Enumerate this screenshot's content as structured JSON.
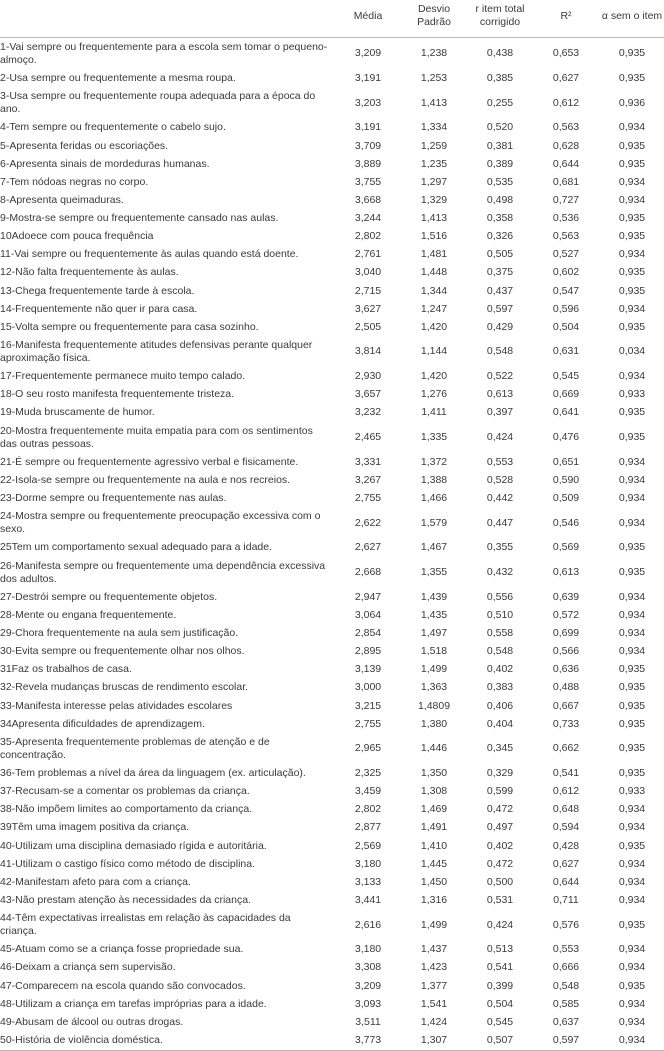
{
  "headers": {
    "label": "",
    "media": "Média",
    "sd": "Desvio Padrão",
    "ritem": "r item total corrigido",
    "r2": "R²",
    "alpha": "α sem o item"
  },
  "rows": [
    {
      "label": "1-Vai sempre ou frequentemente para a escola sem tomar o pequeno-almoço.",
      "media": "3,209",
      "sd": "1,238",
      "ritem": "0,438",
      "r2": "0,653",
      "alpha": "0,935"
    },
    {
      "label": "2-Usa sempre ou frequentemente a mesma roupa.",
      "media": "3,191",
      "sd": "1,253",
      "ritem": "0,385",
      "r2": "0,627",
      "alpha": "0,935"
    },
    {
      "label": "3-Usa sempre ou frequentemente roupa adequada para a época do ano.",
      "media": "3,203",
      "sd": "1,413",
      "ritem": "0,255",
      "r2": "0,612",
      "alpha": "0,936"
    },
    {
      "label": "4-Tem sempre ou frequentemente o cabelo sujo.",
      "media": "3,191",
      "sd": "1,334",
      "ritem": "0,520",
      "r2": "0,563",
      "alpha": "0,934"
    },
    {
      "label": "5-Apresenta feridas ou escoriações.",
      "media": "3,709",
      "sd": "1,259",
      "ritem": "0,381",
      "r2": "0,628",
      "alpha": "0,935"
    },
    {
      "label": "6-Apresenta sinais de mordeduras humanas.",
      "media": "3,889",
      "sd": "1,235",
      "ritem": "0,389",
      "r2": "0,644",
      "alpha": "0,935"
    },
    {
      "label": "7-Tem nódoas negras no corpo.",
      "media": "3,755",
      "sd": "1,297",
      "ritem": "0,535",
      "r2": "0,681",
      "alpha": "0,934"
    },
    {
      "label": "8-Apresenta queimaduras.",
      "media": "3,668",
      "sd": "1,329",
      "ritem": "0,498",
      "r2": "0,727",
      "alpha": "0,934"
    },
    {
      "label": "9-Mostra-se sempre ou frequentemente cansado nas aulas.",
      "media": "3,244",
      "sd": "1,413",
      "ritem": "0,358",
      "r2": "0,536",
      "alpha": "0,935"
    },
    {
      "label": "10Adoece com pouca frequência",
      "media": "2,802",
      "sd": "1,516",
      "ritem": "0,326",
      "r2": "0,563",
      "alpha": "0,935"
    },
    {
      "label": "11-Vai sempre ou frequentemente às aulas quando está doente.",
      "media": "2,761",
      "sd": "1,481",
      "ritem": "0,505",
      "r2": "0,527",
      "alpha": "0,934"
    },
    {
      "label": "12-Não falta frequentemente às aulas.",
      "media": "3,040",
      "sd": "1,448",
      "ritem": "0,375",
      "r2": "0,602",
      "alpha": "0,935"
    },
    {
      "label": "13-Chega frequentemente tarde à escola.",
      "media": "2,715",
      "sd": "1,344",
      "ritem": "0,437",
      "r2": "0,547",
      "alpha": "0,935"
    },
    {
      "label": "14-Frequentemente não quer ir para casa.",
      "media": "3,627",
      "sd": "1,247",
      "ritem": "0,597",
      "r2": "0,596",
      "alpha": "0,934"
    },
    {
      "label": "15-Volta sempre ou frequentemente para casa sozinho.",
      "media": "2,505",
      "sd": "1,420",
      "ritem": "0,429",
      "r2": "0,504",
      "alpha": "0,935"
    },
    {
      "label": "16-Manifesta frequentemente atitudes defensivas perante qualquer aproximação física.",
      "media": "3,814",
      "sd": "1,144",
      "ritem": "0,548",
      "r2": "0,631",
      "alpha": "0,034"
    },
    {
      "label": "17-Frequentemente permanece muito tempo calado.",
      "media": "2,930",
      "sd": "1,420",
      "ritem": "0,522",
      "r2": "0,545",
      "alpha": "0,934"
    },
    {
      "label": "18-O seu rosto manifesta frequentemente tristeza.",
      "media": "3,657",
      "sd": "1,276",
      "ritem": "0,613",
      "r2": "0,669",
      "alpha": "0,933"
    },
    {
      "label": "19-Muda bruscamente de humor.",
      "media": "3,232",
      "sd": "1,411",
      "ritem": "0,397",
      "r2": "0,641",
      "alpha": "0,935"
    },
    {
      "label": "20-Mostra frequentemente muita empatia para com os sentimentos das outras pessoas.",
      "media": "2,465",
      "sd": "1,335",
      "ritem": "0,424",
      "r2": "0,476",
      "alpha": "0,935"
    },
    {
      "label": "21-É sempre ou frequentemente agressivo verbal e fisicamente.",
      "media": "3,331",
      "sd": "1,372",
      "ritem": "0,553",
      "r2": "0,651",
      "alpha": "0,934"
    },
    {
      "label": "22-Isola-se sempre ou frequentemente na aula e nos recreios.",
      "media": "3,267",
      "sd": "1,388",
      "ritem": "0,528",
      "r2": "0,590",
      "alpha": "0,934"
    },
    {
      "label": "23-Dorme sempre ou frequentemente nas aulas.",
      "media": "2,755",
      "sd": "1,466",
      "ritem": "0,442",
      "r2": "0,509",
      "alpha": "0,934"
    },
    {
      "label": "24-Mostra sempre ou frequentemente preocupação excessiva com o sexo.",
      "media": "2,622",
      "sd": "1,579",
      "ritem": "0,447",
      "r2": "0,546",
      "alpha": "0,934"
    },
    {
      "label": "25Tem um comportamento sexual adequado para a idade.",
      "media": "2,627",
      "sd": "1,467",
      "ritem": "0,355",
      "r2": "0,569",
      "alpha": "0,935"
    },
    {
      "label": "26-Manifesta sempre ou frequentemente uma dependência excessiva dos adultos.",
      "media": "2,668",
      "sd": "1,355",
      "ritem": "0,432",
      "r2": "0,613",
      "alpha": "0,935"
    },
    {
      "label": "27-Destrói sempre ou frequentemente objetos.",
      "media": "2,947",
      "sd": "1,439",
      "ritem": "0,556",
      "r2": "0,639",
      "alpha": "0,934"
    },
    {
      "label": "28-Mente ou engana frequentemente.",
      "media": "3,064",
      "sd": "1,435",
      "ritem": "0,510",
      "r2": "0,572",
      "alpha": "0,934"
    },
    {
      "label": "29-Chora frequentemente na aula sem justificação.",
      "media": "2,854",
      "sd": "1,497",
      "ritem": "0,558",
      "r2": "0,699",
      "alpha": "0,934"
    },
    {
      "label": "30-Evita sempre ou frequentemente olhar nos olhos.",
      "media": "2,895",
      "sd": "1,518",
      "ritem": "0,548",
      "r2": "0,566",
      "alpha": "0,934"
    },
    {
      "label": "31Faz os trabalhos de casa.",
      "media": "3,139",
      "sd": "1,499",
      "ritem": "0,402",
      "r2": "0,636",
      "alpha": "0,935"
    },
    {
      "label": "32-Revela mudanças bruscas de rendimento escolar.",
      "media": "3,000",
      "sd": "1,363",
      "ritem": "0,383",
      "r2": "0,488",
      "alpha": "0,935"
    },
    {
      "label": "33-Manifesta interesse pelas atividades escolares",
      "media": "3,215",
      "sd": "1,4809",
      "ritem": "0,406",
      "r2": "0,667",
      "alpha": "0,935"
    },
    {
      "label": "34Apresenta dificuldades de aprendizagem.",
      "media": "2,755",
      "sd": "1,380",
      "ritem": "0,404",
      "r2": "0,733",
      "alpha": "0,935"
    },
    {
      "label": "35-Apresenta frequentemente problemas de atenção e de concentração.",
      "media": "2,965",
      "sd": "1,446",
      "ritem": "0,345",
      "r2": "0,662",
      "alpha": "0,935"
    },
    {
      "label": "36-Tem problemas a nível da área da linguagem (ex. articulação).",
      "media": "2,325",
      "sd": "1,350",
      "ritem": "0,329",
      "r2": "0,541",
      "alpha": "0,935"
    },
    {
      "label": "37-Recusam-se a comentar os problemas da criança.",
      "media": "3,459",
      "sd": "1,308",
      "ritem": "0,599",
      "r2": "0,612",
      "alpha": "0,933"
    },
    {
      "label": "38-Não impõem limites ao comportamento da criança.",
      "media": "2,802",
      "sd": "1,469",
      "ritem": "0,472",
      "r2": "0,648",
      "alpha": "0,934"
    },
    {
      "label": "39Têm uma imagem positiva da criança.",
      "media": "2,877",
      "sd": "1,491",
      "ritem": "0,497",
      "r2": "0,594",
      "alpha": "0,934"
    },
    {
      "label": "40-Utilizam uma disciplina demasiado rígida e autoritária.",
      "media": "2,569",
      "sd": "1,410",
      "ritem": "0,402",
      "r2": "0,428",
      "alpha": "0,935"
    },
    {
      "label": "41-Utilizam o castigo físico como método de disciplina.",
      "media": "3,180",
      "sd": "1,445",
      "ritem": "0,472",
      "r2": "0,627",
      "alpha": "0,934"
    },
    {
      "label": "42-Manifestam afeto para com a criança.",
      "media": "3,133",
      "sd": "1,450",
      "ritem": "0,500",
      "r2": "0,644",
      "alpha": "0,934"
    },
    {
      "label": "43-Não prestam atenção às necessidades da criança.",
      "media": "3,441",
      "sd": "1,316",
      "ritem": "0,531",
      "r2": "0,711",
      "alpha": "0,934"
    },
    {
      "label": "44-Têm expectativas irrealistas em relação às capacidades da criança.",
      "media": "2,616",
      "sd": "1,499",
      "ritem": "0,424",
      "r2": "0,576",
      "alpha": "0,935"
    },
    {
      "label": "45-Atuam como se a criança fosse propriedade sua.",
      "media": "3,180",
      "sd": "1,437",
      "ritem": "0,513",
      "r2": "0,553",
      "alpha": "0,934"
    },
    {
      "label": "46-Deixam a criança sem supervisão.",
      "media": "3,308",
      "sd": "1,423",
      "ritem": "0,541",
      "r2": "0,666",
      "alpha": "0,934"
    },
    {
      "label": "47-Comparecem na escola quando são convocados.",
      "media": "3,209",
      "sd": "1,377",
      "ritem": "0,399",
      "r2": "0,548",
      "alpha": "0,935"
    },
    {
      "label": "48-Utilizam a criança em tarefas impróprias para a idade.",
      "media": "3,093",
      "sd": "1,541",
      "ritem": "0,504",
      "r2": "0,585",
      "alpha": "0,934"
    },
    {
      "label": "49-Abusam de álcool ou outras drogas.",
      "media": "3,511",
      "sd": "1,424",
      "ritem": "0,545",
      "r2": "0,637",
      "alpha": "0,934"
    },
    {
      "label": "50-História de violência doméstica.",
      "media": "3,773",
      "sd": "1,307",
      "ritem": "0,507",
      "r2": "0,597",
      "alpha": "0,934"
    }
  ]
}
